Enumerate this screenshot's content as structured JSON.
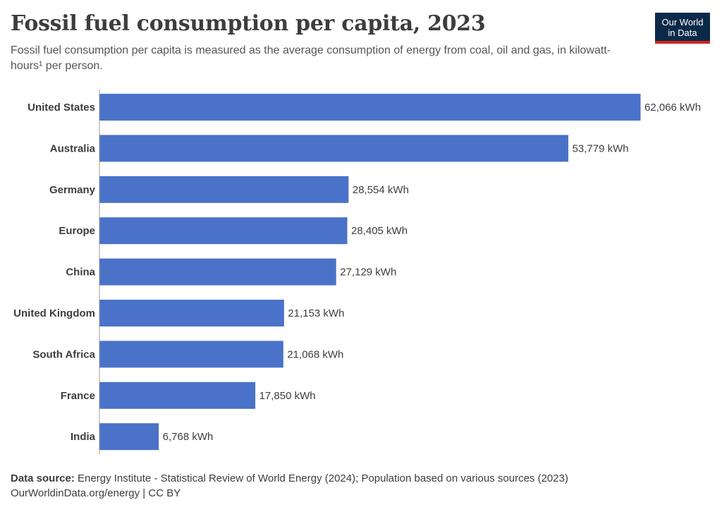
{
  "title": "Fossil fuel consumption per capita, 2023",
  "subtitle": "Fossil fuel consumption per capita is measured as the average consumption of energy from coal, oil and gas, in kilowatt-hours¹ per person.",
  "logo": {
    "line1": "Our World",
    "line2": "in Data"
  },
  "footer": {
    "source_label": "Data source:",
    "source_text": "Energy Institute - Statistical Review of World Energy (2024); Population based on various sources (2023)",
    "credit": "OurWorldinData.org/energy | CC BY"
  },
  "colors": {
    "bar": "#4a72c8",
    "logo_bg": "#0b2a4a",
    "logo_accent": "#ce261e"
  },
  "chart_data": {
    "type": "bar",
    "orientation": "horizontal",
    "title": "Fossil fuel consumption per capita, 2023",
    "unit": "kWh",
    "categories": [
      "United States",
      "Australia",
      "Germany",
      "Europe",
      "China",
      "United Kingdom",
      "South Africa",
      "France",
      "India"
    ],
    "values": [
      62066,
      53779,
      28554,
      28405,
      27129,
      21153,
      21068,
      17850,
      6768
    ],
    "value_labels": [
      "62,066 kWh",
      "53,779 kWh",
      "28,554 kWh",
      "28,405 kWh",
      "27,129 kWh",
      "21,153 kWh",
      "21,068 kWh",
      "17,850 kWh",
      "6,768 kWh"
    ],
    "xlim": [
      0,
      62066
    ],
    "grid": false,
    "legend": "none"
  }
}
